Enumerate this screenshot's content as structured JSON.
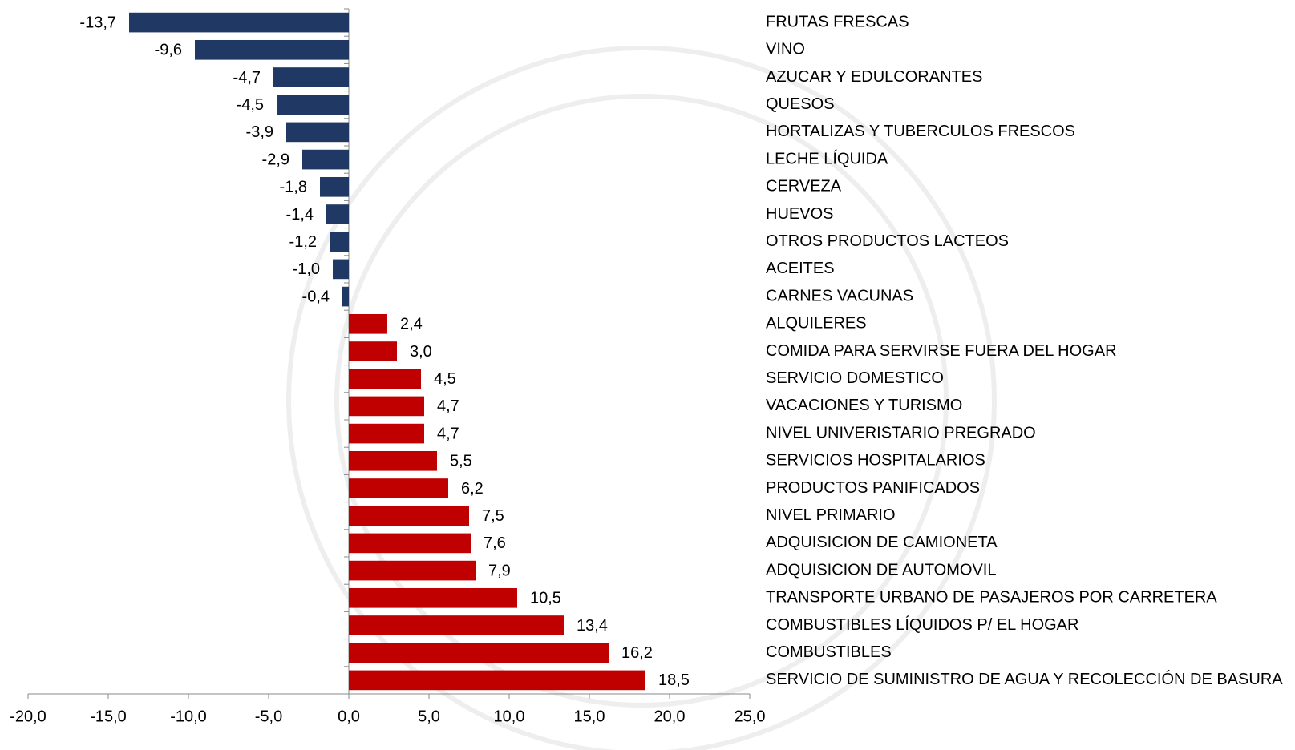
{
  "chart_data": {
    "type": "barh",
    "categories": [
      "FRUTAS FRESCAS",
      "VINO",
      "AZUCAR Y EDULCORANTES",
      "QUESOS",
      "HORTALIZAS Y TUBERCULOS FRESCOS",
      "LECHE LÍQUIDA",
      "CERVEZA",
      "HUEVOS",
      "OTROS PRODUCTOS LACTEOS",
      "ACEITES",
      "CARNES VACUNAS",
      "ALQUILERES",
      "COMIDA PARA SERVIRSE FUERA DEL HOGAR",
      "SERVICIO DOMESTICO",
      "VACACIONES Y TURISMO",
      "NIVEL UNIVERISTARIO PREGRADO",
      "SERVICIOS HOSPITALARIOS",
      "PRODUCTOS PANIFICADOS",
      "NIVEL PRIMARIO",
      "ADQUISICION DE CAMIONETA",
      "ADQUISICION DE AUTOMOVIL",
      "TRANSPORTE URBANO DE PASAJEROS POR CARRETERA",
      "COMBUSTIBLES LÍQUIDOS P/ EL HOGAR",
      "COMBUSTIBLES",
      "SERVICIO DE SUMINISTRO DE AGUA Y RECOLECCIÓN DE BASURA"
    ],
    "values": [
      -13.7,
      -9.6,
      -4.7,
      -4.5,
      -3.9,
      -2.9,
      -1.8,
      -1.4,
      -1.2,
      -1.0,
      -0.4,
      2.4,
      3.0,
      4.5,
      4.7,
      4.7,
      5.5,
      6.2,
      7.5,
      7.6,
      7.9,
      10.5,
      13.4,
      16.2,
      18.5
    ],
    "value_labels": [
      "-13,7",
      "-9,6",
      "-4,7",
      "-4,5",
      "-3,9",
      "-2,9",
      "-1,8",
      "-1,4",
      "-1,2",
      "-1,0",
      "-0,4",
      "2,4",
      "3,0",
      "4,5",
      "4,7",
      "4,7",
      "5,5",
      "6,2",
      "7,5",
      "7,6",
      "7,9",
      "10,5",
      "13,4",
      "16,2",
      "18,5"
    ],
    "color_negative": "#1f3864",
    "color_positive": "#c00000",
    "xlim": [
      -20,
      25
    ],
    "xticks": [
      {
        "value": -20,
        "label": "-20,0"
      },
      {
        "value": -15,
        "label": "-15,0"
      },
      {
        "value": -10,
        "label": "-10,0"
      },
      {
        "value": -5,
        "label": "-5,0"
      },
      {
        "value": 0,
        "label": "0,0"
      },
      {
        "value": 5,
        "label": "5,0"
      },
      {
        "value": 10,
        "label": "10,0"
      },
      {
        "value": 15,
        "label": "15,0"
      },
      {
        "value": 20,
        "label": "20,0"
      },
      {
        "value": 25,
        "label": "25,0"
      }
    ]
  }
}
